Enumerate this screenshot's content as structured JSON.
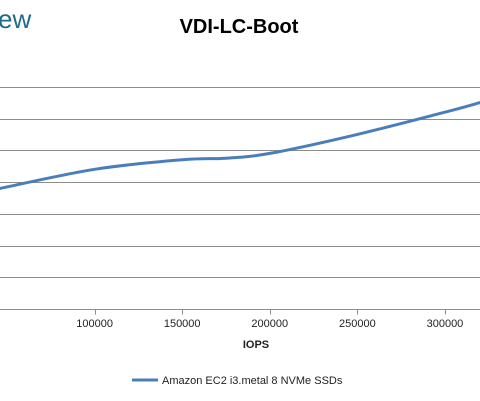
{
  "brand_text": "ew",
  "colors": {
    "series": "#4a7ebb",
    "grid": "#8c8c8c",
    "axis": "#8c8c8c",
    "brand": "#1f6b8a"
  },
  "chart_data": {
    "type": "line",
    "title": "VDI-LC-Boot",
    "xlabel": "IOPS",
    "ylabel": "",
    "xlim": [
      46000,
      320000
    ],
    "xticks": [
      100000,
      150000,
      200000,
      250000,
      300000
    ],
    "x_tick_labels": [
      "100000",
      "150000",
      "200000",
      "250000",
      "300000"
    ],
    "ylim": [
      0,
      8
    ],
    "y_gridlines": [
      0,
      1,
      2,
      3,
      4,
      5,
      6,
      7
    ],
    "grid": true,
    "legend_position": "bottom",
    "series": [
      {
        "name": "Amazon EC2 i3.metal 8 NVMe SSDs",
        "x": [
          46000,
          100000,
          150000,
          175000,
          200000,
          250000,
          300000,
          320000
        ],
        "y": [
          3.8,
          4.4,
          4.7,
          4.75,
          4.9,
          5.5,
          6.2,
          6.5
        ]
      }
    ]
  }
}
